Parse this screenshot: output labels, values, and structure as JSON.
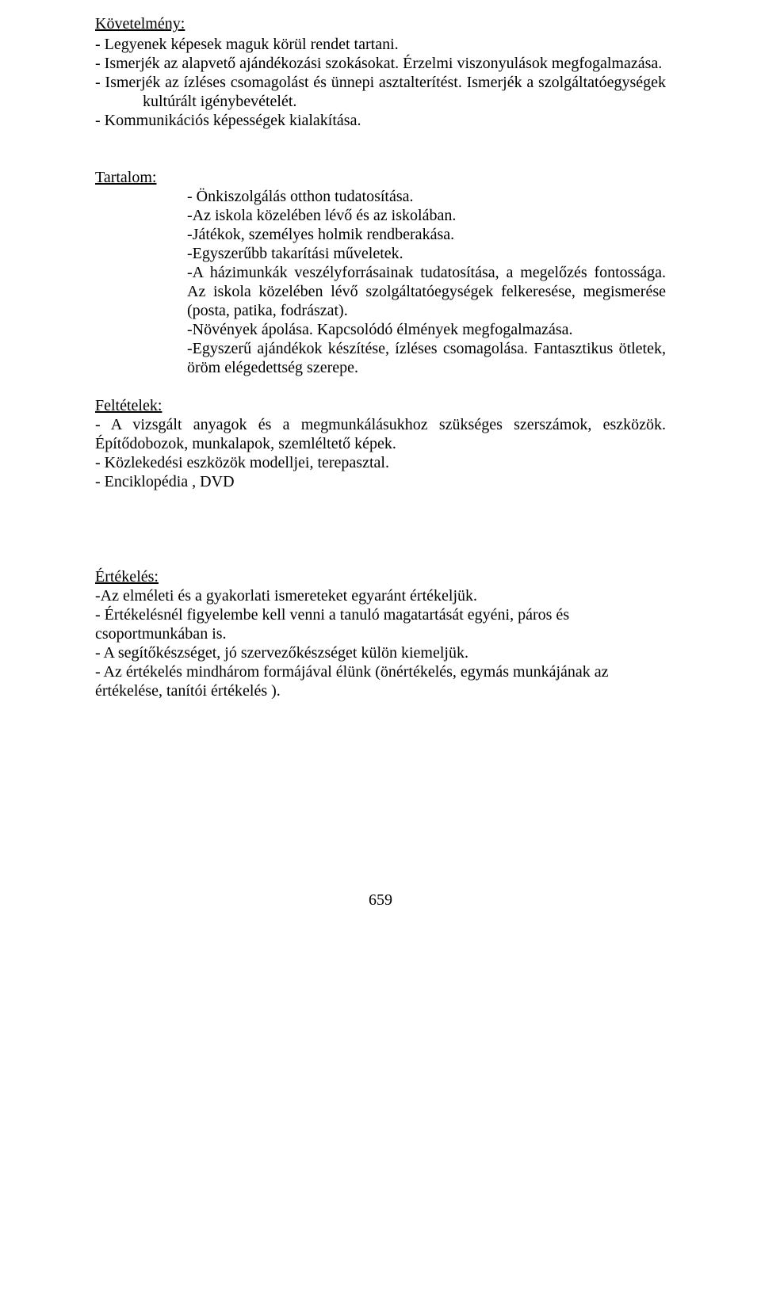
{
  "kovetelmeny": {
    "heading": "Követelmény:",
    "items": [
      "-       Legyenek képesek maguk körül rendet tartani.",
      "-   Ismerjék az alapvető ajándékozási szokásokat. Érzelmi viszonyulások megfogalmazása.",
      "-   Ismerjék az ízléses csomagolást és ünnepi asztalterítést. Ismerjék a szolgáltatóegységek kultúrált igénybevételét.",
      "-       Kommunikációs képességek kialakítása."
    ]
  },
  "tartalom": {
    "heading": "Tartalom:",
    "first_bullet": "-  Önkiszolgálás otthon tudatosítása.",
    "lines": [
      "-Az iskola közelében lévő és az iskolában.",
      "-Játékok, személyes holmik rendberakása.",
      "-Egyszerűbb takarítási műveletek.",
      "-A házimunkák veszélyforrásainak tudatosítása, a megelőzés fontossága. Az iskola közelében lévő szolgáltatóegységek felkeresése, megismerése (posta, patika, fodrászat).",
      "-Növények ápolása. Kapcsolódó élmények megfogalmazása.",
      "-Egyszerű ajándékok készítése, ízléses csomagolása. Fantasztikus ötletek, öröm elégedettség szerepe."
    ]
  },
  "feltetelek": {
    "heading": "Feltételek:",
    "lines": [
      "- A vizsgált anyagok és a megmunkálásukhoz szükséges szerszámok, eszközök. Építődobozok, munkalapok, szemléltető képek.",
      "- Közlekedési eszközök modelljei, terepasztal.",
      "- Enciklopédia , DVD"
    ]
  },
  "ertekeles": {
    "heading": "Értékelés:",
    "lines": [
      "-Az elméleti és a gyakorlati ismereteket egyaránt értékeljük.",
      "- Értékelésnél figyelembe kell venni a tanuló magatartását egyéni, páros és csoportmunkában is.",
      "- A segítőkészséget, jó szervezőkészséget külön kiemeljük.",
      "- Az értékelés mindhárom formájával élünk (önértékelés, egymás munkájának az értékelése, tanítói értékelés )."
    ]
  },
  "page_number": "659"
}
